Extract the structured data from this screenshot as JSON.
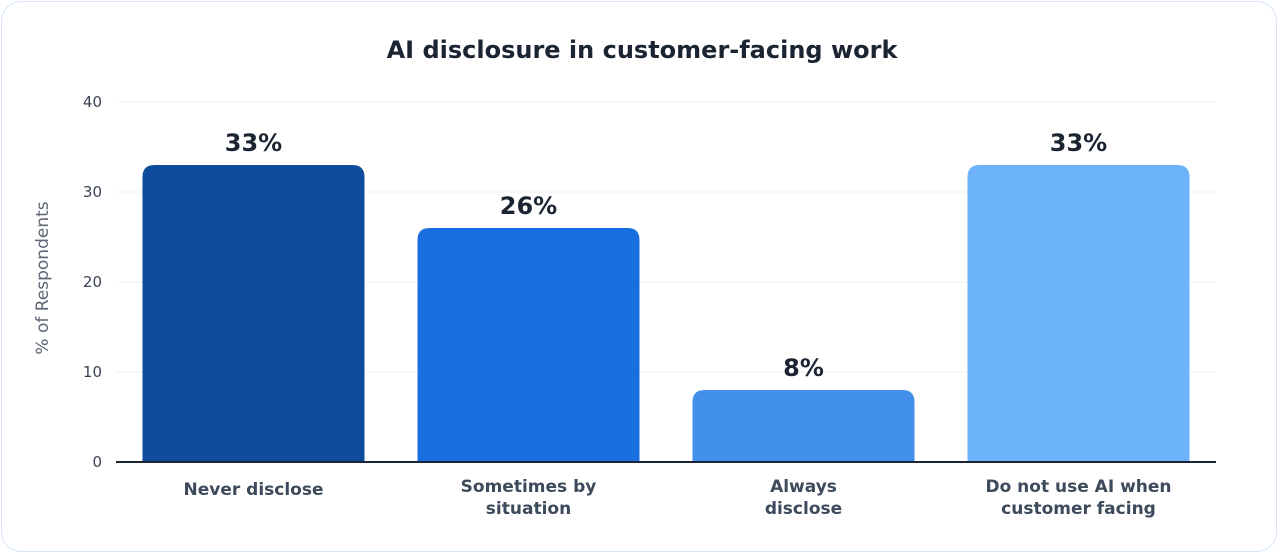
{
  "chart_data": {
    "type": "bar",
    "title": "AI disclosure in customer-facing work",
    "ylabel": "% of Respondents",
    "xlabel": "",
    "ylim": [
      0,
      40
    ],
    "yticks": [
      0,
      10,
      20,
      30,
      40
    ],
    "grid": true,
    "categories": [
      [
        "Never disclose"
      ],
      [
        "Sometimes by",
        "situation"
      ],
      [
        "Always",
        "disclose"
      ],
      [
        "Do not use AI when",
        "customer facing"
      ]
    ],
    "values": [
      33,
      26,
      8,
      33
    ],
    "value_labels": [
      "33%",
      "26%",
      "8%",
      "33%"
    ],
    "colors": [
      "#0e4b9b",
      "#1a6fe0",
      "#438fec",
      "#6cb3fc"
    ]
  }
}
